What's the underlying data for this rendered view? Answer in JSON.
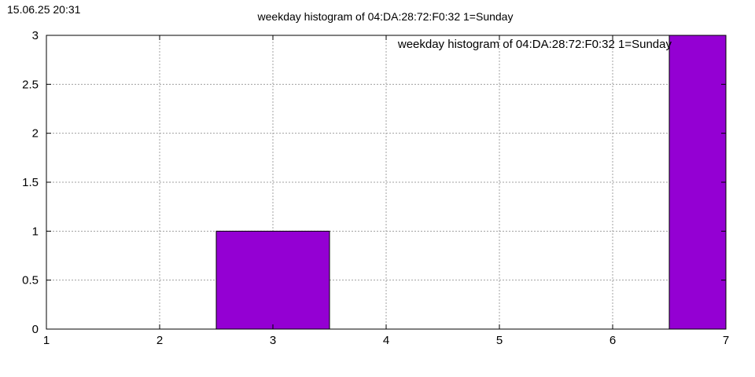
{
  "header": {
    "timestamp": "15.06.25 20:31",
    "title": "weekday histogram of 04:DA:28:72:F0:32 1=Sunday"
  },
  "chart_data": {
    "type": "bar",
    "title": "weekday histogram of 04:DA:28:72:F0:32 1=Sunday",
    "legend": {
      "entries": [
        "weekday histogram of 04:DA:28:72:F0:32 1=Sunday"
      ],
      "placement": "top-right"
    },
    "xlim": [
      1,
      7
    ],
    "ylim": [
      0,
      3
    ],
    "xticks": [
      1,
      2,
      3,
      4,
      5,
      6,
      7
    ],
    "yticks": [
      0,
      0.5,
      1,
      1.5,
      2,
      2.5,
      3
    ],
    "grid": true,
    "bar_width": 1,
    "bar_color": "#9400d3",
    "series": [
      {
        "x": [
          3,
          7
        ],
        "values": [
          1,
          3
        ]
      }
    ]
  }
}
